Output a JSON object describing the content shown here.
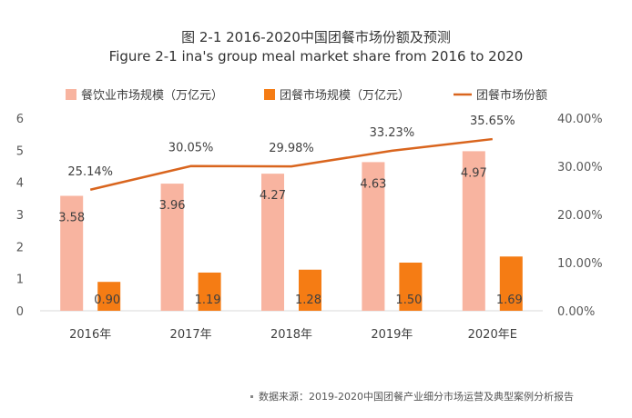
{
  "chart_data": {
    "type": "bar",
    "title": "图 2-1 2016-2020中国团餐市场份额及预测",
    "subtitle": "Figure 2-1 ina's group meal market share from 2016 to 2020",
    "categories": [
      "2016年",
      "2017年",
      "2018年",
      "2019年",
      "2020年E"
    ],
    "series": [
      {
        "name": "餐饮业市场规模（万亿元）",
        "kind": "bar",
        "axis": "left",
        "color": "#F8B4A0",
        "values": [
          3.58,
          3.96,
          4.27,
          4.63,
          4.97
        ],
        "labels": [
          "3.58",
          "3.96",
          "4.27",
          "4.63",
          "4.97"
        ]
      },
      {
        "name": "团餐市场规模（万亿元）",
        "kind": "bar",
        "axis": "left",
        "color": "#F57C14",
        "values": [
          0.9,
          1.19,
          1.28,
          1.5,
          1.69
        ],
        "labels": [
          "0.90",
          "1.19",
          "1.28",
          "1.50",
          "1.69"
        ]
      },
      {
        "name": "团餐市场份额",
        "kind": "line",
        "axis": "right",
        "color": "#D9651E",
        "values": [
          25.14,
          30.05,
          29.98,
          33.23,
          35.65
        ],
        "labels": [
          "25.14%",
          "30.05%",
          "29.98%",
          "33.23%",
          "35.65%"
        ]
      }
    ],
    "ylim_left": [
      0,
      6
    ],
    "yticks_left": [
      "0",
      "1",
      "2",
      "3",
      "4",
      "5",
      "6"
    ],
    "ylim_right": [
      0,
      40
    ],
    "yticks_right": [
      "0.00%",
      "10.00%",
      "20.00%",
      "30.00%",
      "40.00%"
    ],
    "grid": false,
    "legend": "top"
  },
  "source_note": "数据来源：2019-2020中国团餐产业细分市场运营及典型案例分析报告"
}
